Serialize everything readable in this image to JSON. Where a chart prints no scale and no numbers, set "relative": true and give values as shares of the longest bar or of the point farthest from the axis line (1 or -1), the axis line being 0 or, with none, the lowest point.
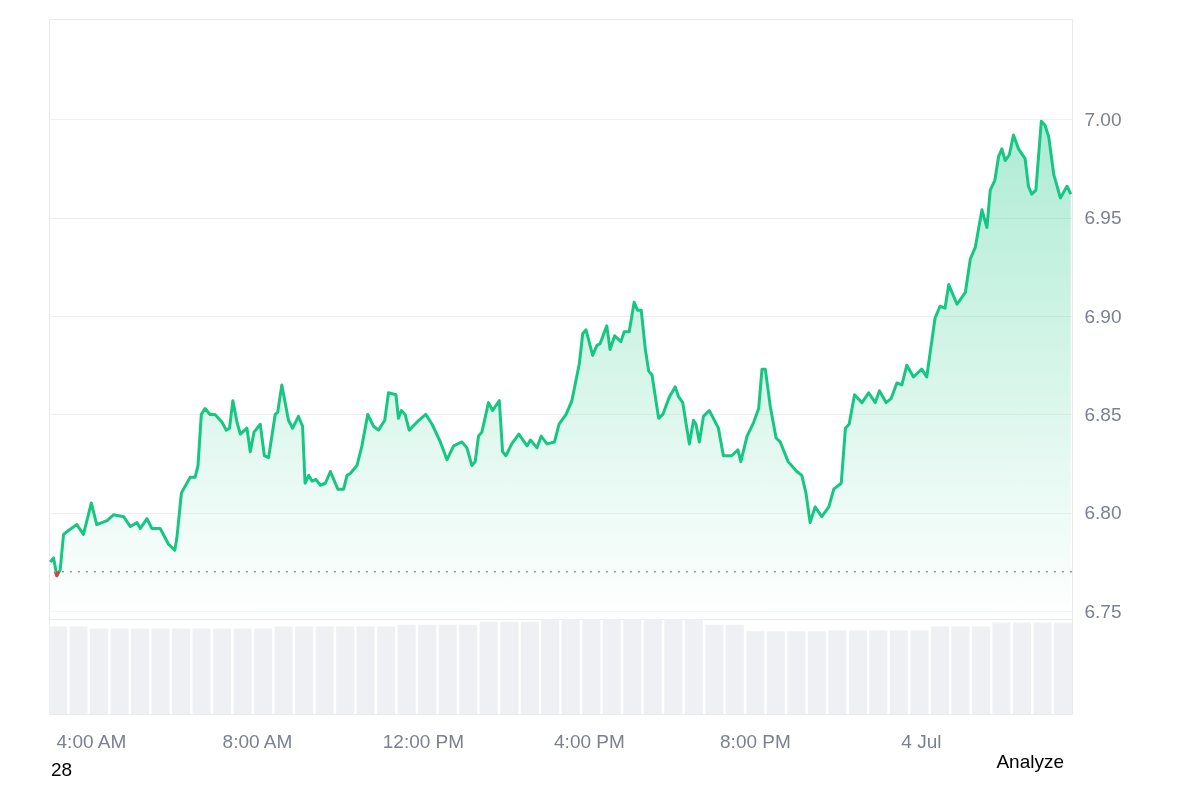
{
  "chart_data": [
    {
      "type": "area",
      "xlim": [
        2.99,
        27.64
      ],
      "ylim": [
        6.746,
        7.051
      ],
      "yticks": [
        6.75,
        {
          "value": 6.8,
          "label": "6.80"
        },
        6.85,
        {
          "value": 6.9,
          "label": "6.90"
        },
        6.95,
        {
          "value": 7,
          "label": "7.00"
        }
      ],
      "grid": "y",
      "xticks": [
        {
          "value": 4,
          "label": "4:00 AM"
        },
        {
          "value": 8,
          "label": "8:00 AM"
        },
        {
          "value": 12,
          "label": "12:00 PM"
        },
        {
          "value": 16,
          "label": "4:00 PM"
        },
        {
          "value": 20,
          "label": "8:00 PM"
        },
        {
          "value": 24,
          "label": "4 Jul"
        }
      ],
      "ref_lines": [
        {
          "axis": "y",
          "value": 6.77,
          "color": "#9aa0a6",
          "line_style": "dotted"
        }
      ],
      "x": [
        3.02,
        3.1,
        3.18,
        3.26,
        3.34,
        3.46,
        3.66,
        3.82,
        4.01,
        4.14,
        4.39,
        4.55,
        4.79,
        4.95,
        5.11,
        5.19,
        5.35,
        5.47,
        5.67,
        5.87,
        6.02,
        6.07,
        6.18,
        6.39,
        6.51,
        6.58,
        6.66,
        6.75,
        6.87,
        6.99,
        7.16,
        7.26,
        7.34,
        7.42,
        7.52,
        7.6,
        7.76,
        7.84,
        7.93,
        8.08,
        8.18,
        8.28,
        8.44,
        8.5,
        8.6,
        8.76,
        8.86,
        9.0,
        9.1,
        9.16,
        9.25,
        9.33,
        9.42,
        9.53,
        9.65,
        9.77,
        9.95,
        10.09,
        10.17,
        10.25,
        10.41,
        10.53,
        10.67,
        10.81,
        10.93,
        11.08,
        11.17,
        11.35,
        11.41,
        11.48,
        11.57,
        11.67,
        11.9,
        12.07,
        12.22,
        12.42,
        12.58,
        12.74,
        12.94,
        13.06,
        13.18,
        13.26,
        13.34,
        13.42,
        13.58,
        13.68,
        13.84,
        13.92,
        14.0,
        14.14,
        14.31,
        14.51,
        14.59,
        14.75,
        14.85,
        14.99,
        15.17,
        15.28,
        15.45,
        15.59,
        15.77,
        15.85,
        15.93,
        16.09,
        16.19,
        16.27,
        16.43,
        16.51,
        16.62,
        16.77,
        16.85,
        16.97,
        17.09,
        17.17,
        17.26,
        17.36,
        17.44,
        17.52,
        17.68,
        17.78,
        17.94,
        18.08,
        18.16,
        18.26,
        18.42,
        18.52,
        18.58,
        18.66,
        18.76,
        18.9,
        19.12,
        19.24,
        19.44,
        19.59,
        19.66,
        19.81,
        19.97,
        20.09,
        20.17,
        20.25,
        20.37,
        20.51,
        20.61,
        20.8,
        21.01,
        21.13,
        21.23,
        21.33,
        21.45,
        21.61,
        21.78,
        21.9,
        22.08,
        22.18,
        22.27,
        22.4,
        22.58,
        22.74,
        22.9,
        23.0,
        23.16,
        23.28,
        23.42,
        23.54,
        23.66,
        23.82,
        24.02,
        24.14,
        24.34,
        24.46,
        24.58,
        24.67,
        24.87,
        25.07,
        25.19,
        25.31,
        25.47,
        25.59,
        25.67,
        25.78,
        25.87,
        25.95,
        26.03,
        26.13,
        26.23,
        26.35,
        26.51,
        26.59,
        26.67,
        26.77,
        26.9,
        26.99,
        27.08,
        27.2,
        27.36,
        27.52,
        27.61
      ],
      "series": [
        {
          "type": "area",
          "color": "#16c784",
          "values": [
            6.775,
            6.777,
            6.768,
            6.771,
            6.789,
            6.791,
            6.794,
            6.789,
            6.805,
            6.794,
            6.796,
            6.799,
            6.798,
            6.793,
            6.795,
            6.792,
            6.797,
            6.792,
            6.792,
            6.784,
            6.781,
            6.787,
            6.81,
            6.818,
            6.818,
            6.824,
            6.85,
            6.853,
            6.85,
            6.85,
            6.846,
            6.842,
            6.843,
            6.857,
            6.846,
            6.84,
            6.843,
            6.831,
            6.841,
            6.845,
            6.829,
            6.828,
            6.85,
            6.851,
            6.865,
            6.847,
            6.843,
            6.849,
            6.844,
            6.815,
            6.819,
            6.816,
            6.817,
            6.814,
            6.815,
            6.821,
            6.812,
            6.812,
            6.819,
            6.82,
            6.824,
            6.834,
            6.85,
            6.844,
            6.842,
            6.847,
            6.861,
            6.86,
            6.848,
            6.852,
            6.85,
            6.842,
            6.847,
            6.85,
            6.845,
            6.836,
            6.827,
            6.834,
            6.836,
            6.833,
            6.824,
            6.826,
            6.839,
            6.841,
            6.856,
            6.852,
            6.857,
            6.831,
            6.829,
            6.835,
            6.84,
            6.834,
            6.837,
            6.833,
            6.839,
            6.835,
            6.836,
            6.845,
            6.85,
            6.857,
            6.876,
            6.891,
            6.893,
            6.88,
            6.885,
            6.886,
            6.895,
            6.883,
            6.89,
            6.887,
            6.892,
            6.892,
            6.907,
            6.903,
            6.903,
            6.883,
            6.872,
            6.87,
            6.848,
            6.85,
            6.859,
            6.864,
            6.859,
            6.856,
            6.835,
            6.847,
            6.845,
            6.836,
            6.849,
            6.852,
            6.843,
            6.829,
            6.829,
            6.832,
            6.826,
            6.839,
            6.846,
            6.853,
            6.873,
            6.873,
            6.854,
            6.838,
            6.836,
            6.826,
            6.821,
            6.819,
            6.81,
            6.795,
            6.803,
            6.798,
            6.803,
            6.812,
            6.815,
            6.843,
            6.845,
            6.86,
            6.856,
            6.861,
            6.856,
            6.862,
            6.856,
            6.858,
            6.866,
            6.865,
            6.875,
            6.869,
            6.873,
            6.869,
            6.899,
            6.905,
            6.904,
            6.916,
            6.906,
            6.912,
            6.929,
            6.935,
            6.954,
            6.945,
            6.964,
            6.969,
            6.981,
            6.985,
            6.979,
            6.982,
            6.992,
            6.985,
            6.98,
            6.966,
            6.962,
            6.964,
            6.999,
            6.997,
            6.991,
            6.972,
            6.96,
            6.966,
            6.962
          ]
        },
        {
          "type": "line",
          "color": "#ea3943",
          "x": [
            3.14,
            3.18,
            3.22
          ],
          "values": [
            6.77,
            6.768,
            6.77
          ]
        }
      ]
    },
    {
      "type": "bar",
      "relative": true,
      "annotations": [
        "Analyze",
        "28"
      ],
      "categories": [
        null,
        null,
        null,
        null,
        null,
        null,
        null,
        null,
        null,
        null,
        null,
        null,
        null,
        null,
        null,
        null,
        null,
        null,
        null,
        null,
        null,
        null,
        null,
        null,
        null,
        null,
        null,
        null,
        null,
        null,
        null,
        null,
        null,
        null,
        null,
        null,
        null,
        null,
        null,
        null,
        null,
        null,
        null,
        null,
        null,
        null,
        null,
        null,
        null,
        null
      ],
      "series": [
        {
          "color": "#eef0f3",
          "values": [
            0.92,
            0.92,
            0.9,
            0.9,
            0.9,
            0.9,
            0.9,
            0.9,
            0.9,
            0.9,
            0.9,
            0.92,
            0.92,
            0.92,
            0.92,
            0.92,
            0.92,
            0.94,
            0.94,
            0.94,
            0.94,
            0.97,
            0.97,
            0.97,
            1.0,
            1.0,
            1.0,
            1.0,
            1.0,
            1.0,
            1.0,
            1.0,
            0.94,
            0.94,
            0.87,
            0.87,
            0.87,
            0.87,
            0.88,
            0.88,
            0.88,
            0.88,
            0.88,
            0.92,
            0.92,
            0.92,
            0.96,
            0.96,
            0.96,
            0.96
          ]
        }
      ]
    }
  ]
}
